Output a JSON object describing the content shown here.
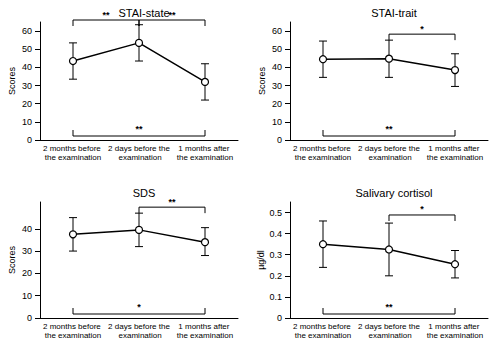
{
  "chart_data": [
    {
      "type": "line",
      "title": "STAI-state",
      "y_label": "Scores",
      "color": "#000000",
      "marker": "circle",
      "categories": [
        "2 months before the examination",
        "2 days before the examination",
        "1 months after the examination"
      ],
      "values": [
        43.5,
        53.5,
        32
      ],
      "error_low": [
        33.5,
        43.5,
        22
      ],
      "error_high": [
        53.5,
        63.5,
        42
      ],
      "ylim": [
        0,
        65
      ],
      "yticks": [
        0,
        10,
        20,
        30,
        40,
        50,
        60
      ],
      "grid": false,
      "brackets": [
        {
          "between": [
            0,
            1
          ],
          "label": "**",
          "side": "top"
        },
        {
          "between": [
            1,
            2
          ],
          "label": "**",
          "side": "top"
        },
        {
          "between": [
            0,
            2
          ],
          "label": "**",
          "side": "bottom"
        }
      ]
    },
    {
      "type": "line",
      "title": "STAI-trait",
      "y_label": "Scores",
      "color": "#000000",
      "marker": "circle",
      "categories": [
        "2 months before the examination",
        "2 days before the examination",
        "1 months after the examination"
      ],
      "values": [
        44.5,
        44.8,
        38.5
      ],
      "error_low": [
        34.5,
        34.5,
        29.5
      ],
      "error_high": [
        54.5,
        55,
        47.5
      ],
      "ylim": [
        0,
        65
      ],
      "yticks": [
        0,
        10,
        20,
        30,
        40,
        50,
        60
      ],
      "grid": false,
      "brackets": [
        {
          "between": [
            1,
            2
          ],
          "label": "*",
          "side": "top"
        },
        {
          "between": [
            0,
            2
          ],
          "label": "**",
          "side": "bottom"
        }
      ]
    },
    {
      "type": "line",
      "title": "SDS",
      "y_label": "Scores",
      "color": "#000000",
      "marker": "circle",
      "categories": [
        "2 months before the examination",
        "2 days before the examination",
        "1 months after the examination"
      ],
      "values": [
        37.5,
        39.5,
        34
      ],
      "error_low": [
        30,
        32,
        28
      ],
      "error_high": [
        45,
        47,
        40.5
      ],
      "ylim": [
        0,
        52
      ],
      "yticks": [
        0,
        10,
        20,
        30,
        40
      ],
      "grid": false,
      "brackets": [
        {
          "between": [
            1,
            2
          ],
          "label": "**",
          "side": "top"
        },
        {
          "between": [
            0,
            2
          ],
          "label": "*",
          "side": "bottom"
        }
      ]
    },
    {
      "type": "line",
      "title": "Salivary cortisol",
      "y_label": "µg/dl",
      "color": "#000000",
      "marker": "circle",
      "categories": [
        "2 months before the examination",
        "2 days before the examination",
        "1 months after the examination"
      ],
      "values": [
        0.35,
        0.325,
        0.255
      ],
      "error_low": [
        0.24,
        0.2,
        0.19
      ],
      "error_high": [
        0.46,
        0.45,
        0.32
      ],
      "ylim": [
        0,
        0.55
      ],
      "yticks": [
        0,
        0.1,
        0.2,
        0.3,
        0.4,
        0.5
      ],
      "grid": false,
      "brackets": [
        {
          "between": [
            1,
            2
          ],
          "label": "*",
          "side": "top"
        },
        {
          "between": [
            0,
            2
          ],
          "label": "**",
          "side": "bottom"
        }
      ]
    }
  ]
}
